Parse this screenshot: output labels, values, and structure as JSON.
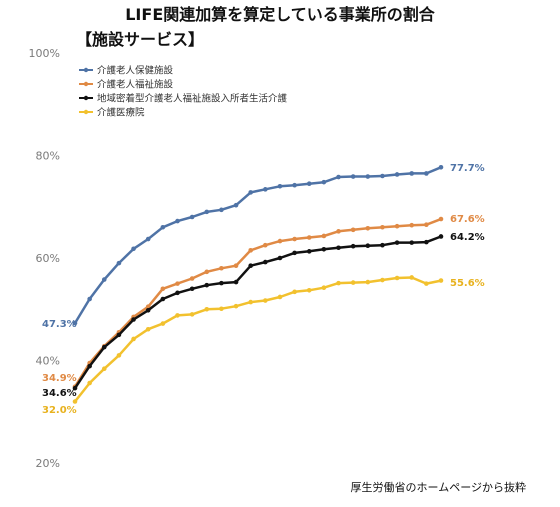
{
  "chart_data": {
    "type": "line",
    "title": "LIFE関連加算を算定している事業所の割合",
    "subtitle": "【施設サービス】",
    "source": "厚生労働省のホームページから抜粋",
    "ylim": [
      20,
      100
    ],
    "yticks": [
      {
        "value": 20,
        "label": "20%"
      },
      {
        "value": 40,
        "label": "40%"
      },
      {
        "value": 60,
        "label": "60%"
      },
      {
        "value": 80,
        "label": "80%"
      },
      {
        "value": 100,
        "label": "100%"
      }
    ],
    "grid": false,
    "legend": "top-left",
    "series": [
      {
        "name": "介護老人保健施設",
        "color": "#4f73a6",
        "values": [
          47.3,
          52.0,
          55.8,
          59.0,
          61.8,
          63.7,
          66.0,
          67.2,
          68.0,
          69.0,
          69.4,
          70.3,
          72.8,
          73.4,
          74.0,
          74.2,
          74.5,
          74.8,
          75.8,
          75.9,
          75.9,
          76.0,
          76.3,
          76.5,
          76.5,
          77.7
        ],
        "start_label": "47.3%",
        "end_label": "77.7%"
      },
      {
        "name": "介護老人福祉施設",
        "color": "#e08a45",
        "values": [
          34.9,
          39.5,
          42.8,
          45.5,
          48.5,
          50.5,
          54.0,
          55.0,
          56.0,
          57.3,
          58.0,
          58.5,
          61.5,
          62.5,
          63.3,
          63.7,
          64.0,
          64.3,
          65.2,
          65.5,
          65.8,
          66.0,
          66.2,
          66.4,
          66.5,
          67.6
        ],
        "start_label": "34.9%",
        "end_label": "67.6%"
      },
      {
        "name": "地域密着型介護老人福祉施設入所者生活介護",
        "color": "#111111",
        "values": [
          34.6,
          38.9,
          42.6,
          45.0,
          48.0,
          49.8,
          52.0,
          53.2,
          54.0,
          54.7,
          55.1,
          55.3,
          58.5,
          59.2,
          60.0,
          61.0,
          61.3,
          61.7,
          62.0,
          62.3,
          62.4,
          62.5,
          63.0,
          63.0,
          63.1,
          64.2
        ],
        "start_label": "34.6%",
        "end_label": "64.2%"
      },
      {
        "name": "介護医療院",
        "color": "#f2c12e",
        "values": [
          32.0,
          35.6,
          38.4,
          41.0,
          44.2,
          46.1,
          47.2,
          48.8,
          49.0,
          50.0,
          50.1,
          50.6,
          51.4,
          51.7,
          52.4,
          53.4,
          53.7,
          54.2,
          55.1,
          55.2,
          55.3,
          55.7,
          56.1,
          56.2,
          55.0,
          55.6
        ],
        "start_label": "32.0%",
        "end_label": "55.6%"
      }
    ]
  }
}
